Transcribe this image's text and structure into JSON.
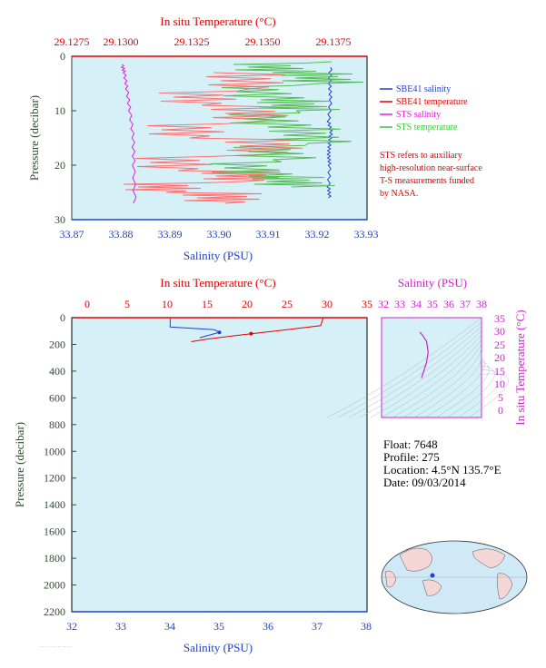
{
  "colors": {
    "salinity_blue": "#1f3fd6",
    "temperature_red": "#e00000",
    "sts_salinity": "#e020e0",
    "sts_temperature": "#3cc43c",
    "sts_temp_plot": "#55bb55",
    "sbe_temp_plot": "#ff7070",
    "plot_bg": "#d6f0f8",
    "pressure_green": "#2e4a2e",
    "salinity_magenta": "#cc22cc"
  },
  "top_chart": {
    "top_axis_label": "In situ Temperature (°C)",
    "top_ticks": [
      "29.1275",
      "29.1300",
      "29.1325",
      "29.1350",
      "29.1375"
    ],
    "left_axis_label": "Pressure (decibar)",
    "left_ticks": [
      "0",
      "10",
      "20",
      "30"
    ],
    "bottom_axis_label": "Salinity (PSU)",
    "bottom_ticks": [
      "33.87",
      "33.88",
      "33.89",
      "33.90",
      "33.91",
      "33.92",
      "33.93"
    ],
    "legend": [
      "SBE41 salinity",
      "SBE41 temperature",
      "STS salinity",
      "STS temperature"
    ],
    "note": [
      "STS refers to auxiliary",
      "high-resolution near-surface",
      "T-S measurements funded",
      "by NASA."
    ]
  },
  "bottom_chart": {
    "top_axis_label": "In situ Temperature (°C)",
    "top_ticks": [
      "0",
      "5",
      "10",
      "15",
      "20",
      "25",
      "30",
      "35"
    ],
    "left_axis_label": "Pressure (decibar)",
    "left_ticks": [
      "0",
      "200",
      "400",
      "600",
      "800",
      "1000",
      "1200",
      "1400",
      "1600",
      "1800",
      "2000",
      "2200"
    ],
    "bottom_axis_label": "Salinity (PSU)",
    "bottom_ticks": [
      "32",
      "33",
      "34",
      "35",
      "36",
      "37",
      "38"
    ]
  },
  "ts_diagram": {
    "top_axis_label": "Salinity (PSU)",
    "top_ticks": [
      "32",
      "33",
      "34",
      "35",
      "36",
      "37",
      "38"
    ],
    "right_axis_label": "In situ Temperature (°C)",
    "right_ticks": [
      "35",
      "30",
      "25",
      "20",
      "15",
      "10",
      "5",
      "0"
    ]
  },
  "float_info": {
    "float": "Float:  7648",
    "profile": "Profile:  275",
    "location": "Location:  4.5°N  135.7°E",
    "date": "Date:  09/03/2014"
  },
  "chart_data": [
    {
      "type": "line",
      "title": "",
      "xlabel": "Salinity (PSU)",
      "x2label": "In situ Temperature (°C)",
      "ylabel": "Pressure (decibar)",
      "xlim": [
        33.87,
        33.93
      ],
      "x2lim": [
        29.1265,
        29.139
      ],
      "ylim": [
        30,
        0
      ],
      "series": [
        {
          "name": "SBE41 salinity",
          "axis": "salinity",
          "x": [
            33.9226,
            33.9224,
            33.9226,
            33.9222,
            33.9227,
            33.9224,
            33.9222,
            33.9224,
            33.9222,
            33.9224
          ],
          "y": [
            2,
            5,
            8,
            12,
            14,
            16,
            18,
            20,
            24,
            26
          ]
        },
        {
          "name": "SBE41 temperature",
          "axis": "temperature",
          "x": [
            29.1325,
            29.134,
            29.132,
            29.1342,
            29.1315,
            29.1348,
            29.131,
            29.1338,
            29.1305,
            29.133
          ],
          "y": [
            3,
            6,
            9,
            12,
            15,
            18,
            21,
            23,
            25,
            27
          ]
        },
        {
          "name": "STS salinity",
          "axis": "salinity",
          "x": [
            33.8802,
            33.8807,
            33.8812,
            33.8818,
            33.8825,
            33.8826,
            33.8828
          ],
          "y": [
            1.5,
            3,
            6,
            10,
            15,
            20,
            27
          ]
        },
        {
          "name": "STS temperature",
          "axis": "temperature",
          "x": [
            29.1375,
            29.135,
            29.137,
            29.1345,
            29.136,
            29.1348,
            29.1365,
            29.135,
            29.134,
            29.1358
          ],
          "y": [
            1,
            3,
            5,
            8,
            10,
            13,
            16,
            19,
            22,
            24
          ]
        }
      ]
    },
    {
      "type": "line",
      "title": "",
      "xlabel": "Salinity (PSU)",
      "x2label": "In situ Temperature (°C)",
      "ylabel": "Pressure (decibar)",
      "xlim": [
        32,
        38
      ],
      "x2lim": [
        0,
        35
      ],
      "ylim": [
        2200,
        0
      ],
      "series": [
        {
          "name": "Salinity",
          "axis": "salinity",
          "x": [
            34.0,
            34.0,
            34.9,
            35.0,
            34.8,
            34.6
          ],
          "y": [
            5,
            70,
            90,
            110,
            130,
            150
          ]
        },
        {
          "name": "Temperature",
          "axis": "temperature",
          "x": [
            29.5,
            29.2,
            25,
            20.5,
            15,
            13
          ],
          "y": [
            5,
            60,
            90,
            120,
            160,
            180
          ]
        }
      ]
    },
    {
      "type": "line",
      "title": "",
      "xlabel": "Salinity (PSU)",
      "ylabel": "In situ Temperature (°C)",
      "xlim": [
        32,
        38
      ],
      "ylim": [
        -3,
        35
      ],
      "series": [
        {
          "x": [
            34.3,
            34.5,
            34.7,
            34.8,
            34.7,
            34.5,
            34.4
          ],
          "y": [
            29.5,
            28,
            26,
            22,
            18,
            14,
            12
          ]
        }
      ]
    }
  ]
}
